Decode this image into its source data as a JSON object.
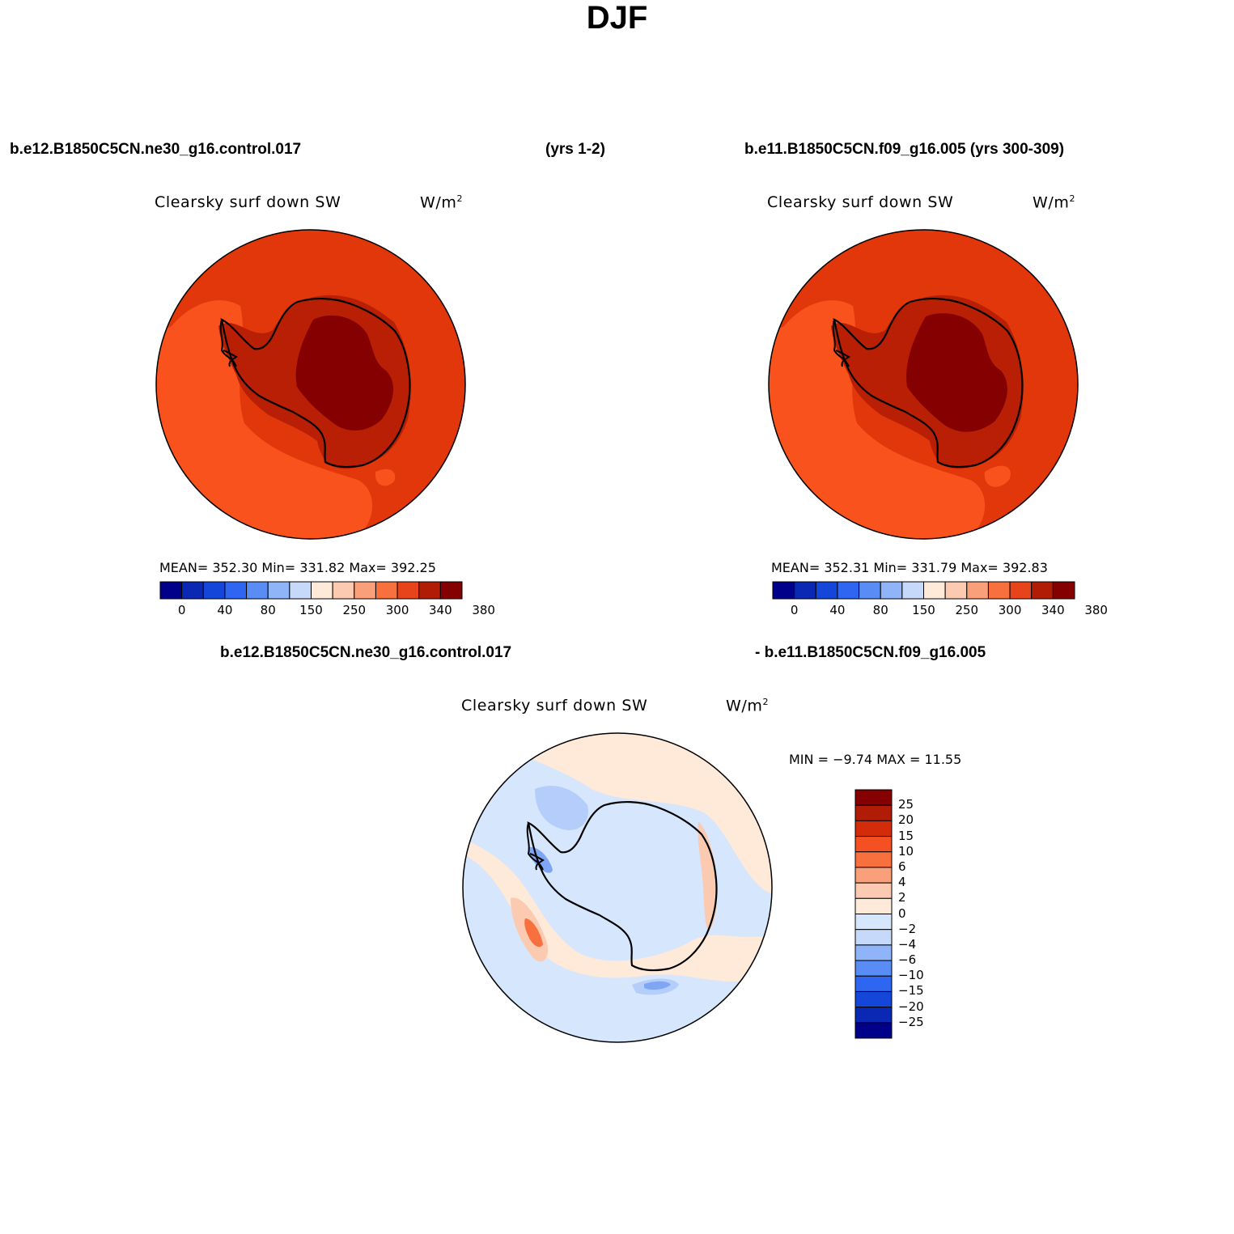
{
  "figure": {
    "title": "DJF",
    "case1_header": "b.e12.B1850C5CN.ne30_g16.control.017",
    "case1_years": "(yrs 1-2)",
    "case2_header": "b.e11.B1850C5CN.f09_g16.005 (yrs 300-309)",
    "diff_header_left": "b.e12.B1850C5CN.ne30_g16.control.017",
    "diff_header_right": "- b.e11.B1850C5CN.f09_g16.005"
  },
  "panels": {
    "left": {
      "variable": "Clearsky surf down SW",
      "units_base": "W/m",
      "units_exp": "2",
      "stats": "MEAN= 352.30   Min= 331.82   Max= 392.25"
    },
    "right": {
      "variable": "Clearsky surf down SW",
      "units_base": "W/m",
      "units_exp": "2",
      "stats": "MEAN= 352.31   Min= 331.79   Max= 392.83"
    },
    "diff": {
      "variable": "Clearsky surf down SW",
      "units_base": "W/m",
      "units_exp": "2",
      "minmax": "MIN =  −9.74 MAX =  11.55"
    }
  },
  "colorbar_abs": {
    "colors": [
      "#00008b",
      "#0a28b4",
      "#1447d9",
      "#2e66f2",
      "#5a8cf5",
      "#90b4f8",
      "#c6d9fb",
      "#ffe9d9",
      "#fccab0",
      "#f9a07a",
      "#f9703f",
      "#e7441c",
      "#b01c06",
      "#850000"
    ],
    "tick_labels": [
      "0",
      "40",
      "80",
      "150",
      "250",
      "300",
      "340",
      "380"
    ]
  },
  "colorbar_diff": {
    "colors_top_to_bottom": [
      "#850000",
      "#b01c06",
      "#d42c0b",
      "#f55021",
      "#f9703f",
      "#f9a07a",
      "#fccab0",
      "#ffe9d9",
      "#d5e6fd",
      "#c6d9fb",
      "#90b4f8",
      "#5a8cf5",
      "#2e66f2",
      "#1447d9",
      "#0a28b4",
      "#00008b"
    ],
    "tick_labels_top_to_bottom": [
      "25",
      "20",
      "15",
      "10",
      "6",
      "4",
      "2",
      "0",
      "−2",
      "−4",
      "−6",
      "−10",
      "−15",
      "−20",
      "−25"
    ]
  },
  "map_colors": {
    "ocean_main": "#e2360b",
    "ocean_high": "#fa521c",
    "ice_shelf": "#b81f05",
    "plateau": "#850000",
    "diff_bg": "#d5e6fd",
    "diff_pos": "#ffe9d9",
    "diff_pos2": "#fccab0",
    "diff_pos3": "#f9703f",
    "diff_neg": "#b4cdfa",
    "diff_neg2": "#7ea6f5"
  }
}
